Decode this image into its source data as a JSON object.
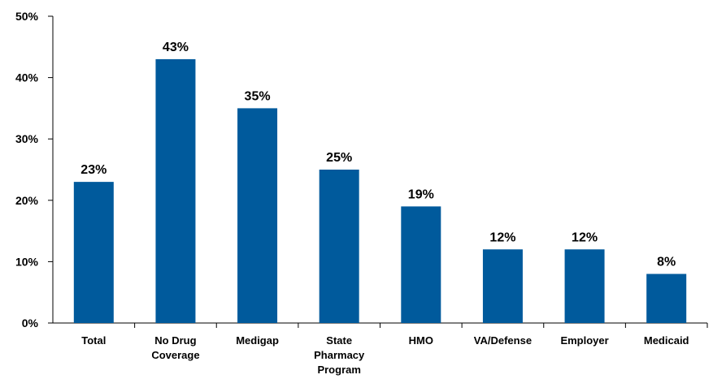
{
  "chart_data": {
    "type": "bar",
    "title": "",
    "xlabel": "",
    "ylabel": "",
    "categories": [
      [
        "Total"
      ],
      [
        "No Drug",
        "Coverage"
      ],
      [
        "Medigap"
      ],
      [
        "State",
        "Pharmacy",
        "Program"
      ],
      [
        "HMO"
      ],
      [
        "VA/Defense"
      ],
      [
        "Employer"
      ],
      [
        "Medicaid"
      ]
    ],
    "values": [
      23,
      43,
      35,
      25,
      19,
      12,
      12,
      8
    ],
    "data_labels": [
      "23%",
      "43%",
      "35%",
      "25%",
      "19%",
      "12%",
      "12%",
      "8%"
    ],
    "ylim": [
      0,
      50
    ],
    "yticks": [
      0,
      10,
      20,
      30,
      40,
      50
    ],
    "ytick_labels": [
      "0%",
      "10%",
      "20%",
      "30%",
      "40%",
      "50%"
    ],
    "grid": false,
    "legend": "none",
    "bar_color": "#005A9C",
    "axis_color": "#000000"
  }
}
